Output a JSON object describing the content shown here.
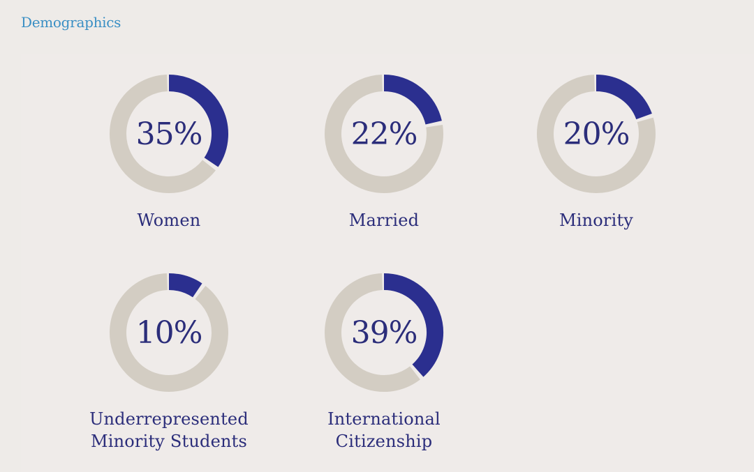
{
  "header": {
    "title": "Demographics"
  },
  "colors": {
    "accent": "#2b2f8f",
    "track": "#d3cdc3",
    "text": "#2b2d7a",
    "title": "#3a8fc4"
  },
  "chart_data": {
    "type": "donut",
    "title": "Demographics",
    "unit": "%",
    "items": [
      {
        "label": "Women",
        "value": 35,
        "value_text": "35%"
      },
      {
        "label": "Married",
        "value": 22,
        "value_text": "22%"
      },
      {
        "label": "Minority",
        "value": 20,
        "value_text": "20%"
      },
      {
        "label": "Underrepresented Minority Students",
        "value": 10,
        "value_text": "10%"
      },
      {
        "label": "International Citizenship",
        "value": 39,
        "value_text": "39%"
      }
    ]
  }
}
